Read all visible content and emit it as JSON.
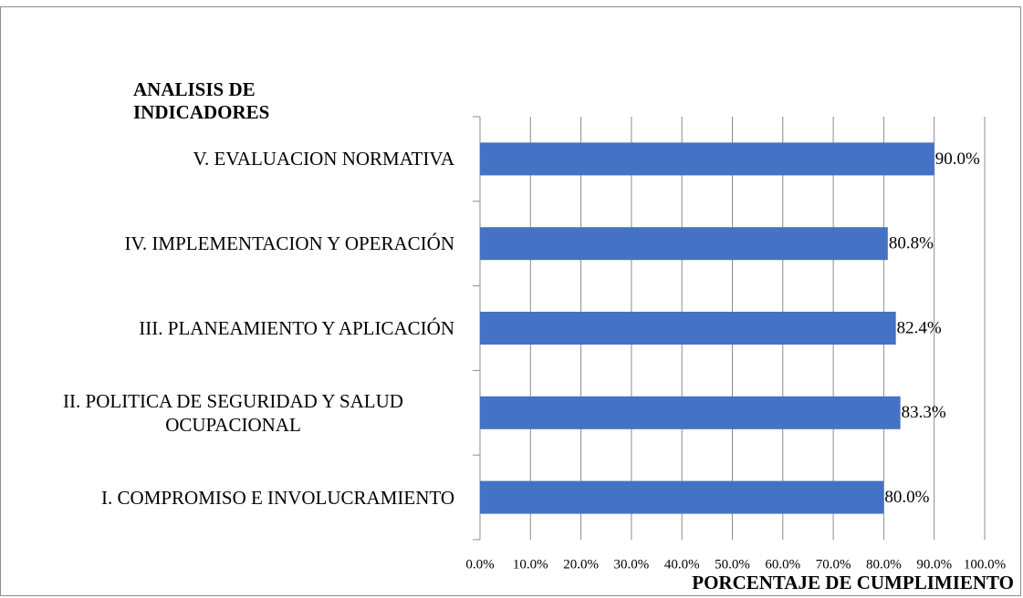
{
  "chart_data": {
    "type": "barh",
    "title": "ANALISIS DE INDICADORES",
    "x_label": "PORCENTAJE DE CUMPLIMIENTO",
    "categories": [
      "I. COMPROMISO E INVOLUCRAMIENTO",
      "II. POLITICA DE SEGURIDAD Y SALUD OCUPACIONAL",
      "III. PLANEAMIENTO Y APLICACIÓN",
      "IV. IMPLEMENTACION Y OPERACIÓN",
      "V. EVALUACION NORMATIVA"
    ],
    "values": [
      80.0,
      83.3,
      82.4,
      80.8,
      90.0
    ],
    "value_labels": [
      "80.0%",
      "83.3%",
      "82.4%",
      "80.8%",
      "90.0%"
    ],
    "color": "#4472c4",
    "xlim": [
      0,
      100
    ],
    "xticks": [
      {
        "value": 0,
        "label": "0.0%"
      },
      {
        "value": 10,
        "label": "10.0%"
      },
      {
        "value": 20,
        "label": "20.0%"
      },
      {
        "value": 30,
        "label": "30.0%"
      },
      {
        "value": 40,
        "label": "40.0%"
      },
      {
        "value": 50,
        "label": "50.0%"
      },
      {
        "value": 60,
        "label": "60.0%"
      },
      {
        "value": 70,
        "label": "70.0%"
      },
      {
        "value": 80,
        "label": "80.0%"
      },
      {
        "value": 90,
        "label": "90.0%"
      },
      {
        "value": 100,
        "label": "100.0%"
      }
    ],
    "grid": true
  }
}
